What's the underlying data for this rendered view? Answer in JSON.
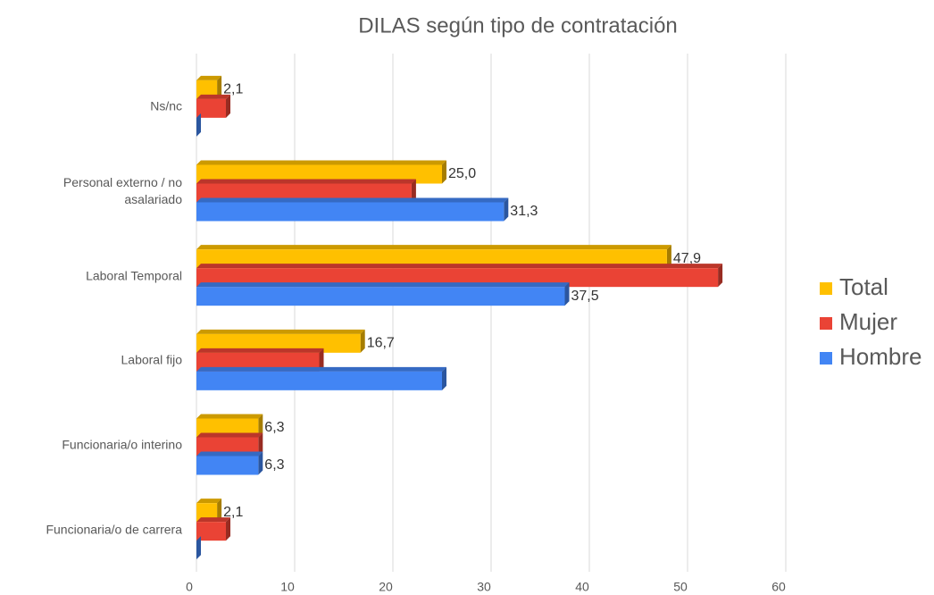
{
  "chart_data": {
    "type": "hbar3d",
    "title": "DILAS según tipo de contratación",
    "categories": [
      "Ns/nc",
      "Personal externo / no asalariado",
      "Laboral Temporal",
      "Laboral fijo",
      "Funcionaria/o interino",
      "Funcionaria/o de carrera"
    ],
    "series": [
      {
        "name": "Total",
        "color": "#ffc000",
        "values": [
          2.1,
          25.0,
          47.9,
          16.7,
          6.3,
          2.1
        ],
        "value_labels": [
          "2,1",
          "25,0",
          "47,9",
          "16,7",
          "6,3",
          "2,1"
        ]
      },
      {
        "name": "Mujer",
        "color": "#ea4335",
        "values": [
          3.0,
          21.9,
          53.1,
          12.5,
          6.3,
          3.0
        ]
      },
      {
        "name": "Hombre",
        "color": "#4285f4",
        "values": [
          0,
          31.3,
          37.5,
          25.0,
          6.3,
          0
        ],
        "value_labels": [
          null,
          "31,3",
          "37,5",
          null,
          "6,3",
          null
        ]
      }
    ],
    "xlim": [
      0,
      60
    ],
    "xticks": [
      0,
      10,
      20,
      30,
      40,
      50,
      60
    ],
    "grid": true,
    "legend": "right"
  }
}
